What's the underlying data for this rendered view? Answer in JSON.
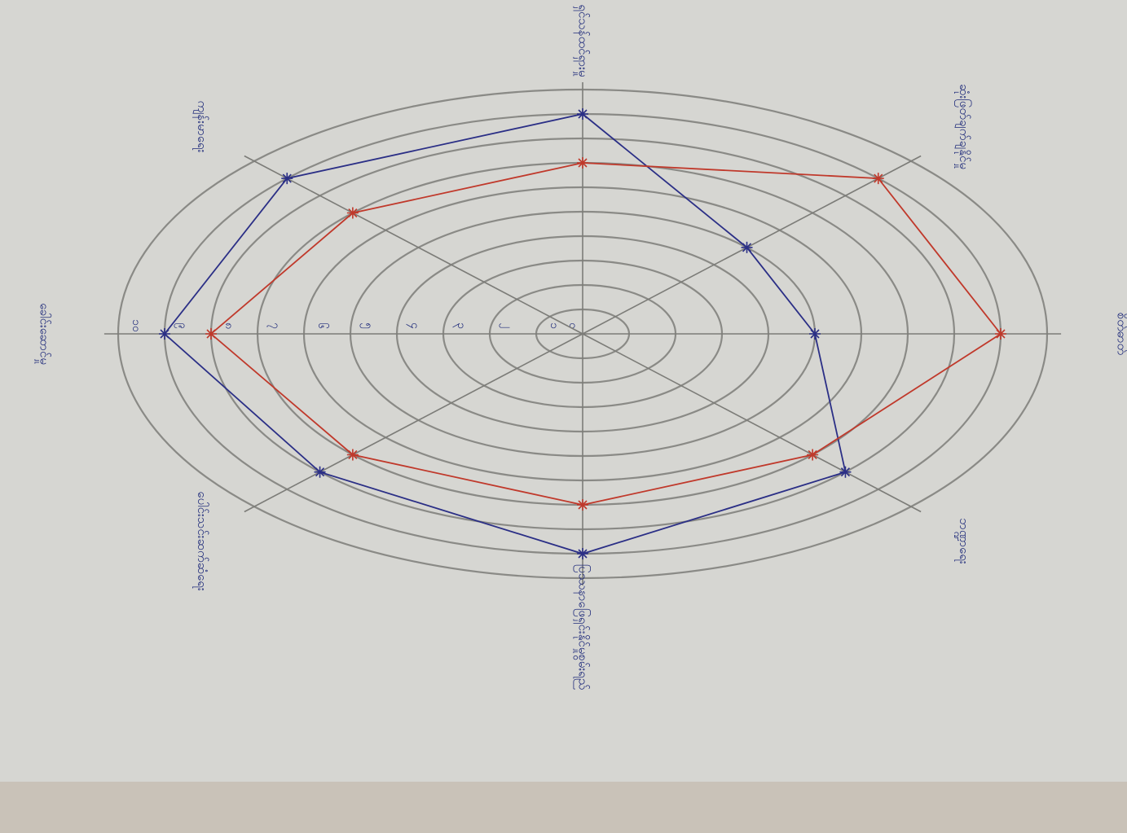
{
  "chart_data": {
    "type": "radar",
    "categories": [
      "ရှင်သန်ထင်ရှားမှု",
      "ဆုံးဖြတ်ချက်ချနိုင်မှု",
      "စိတ်ဓာတ်",
      "ဘဏ္ဍာရေး",
      "ပြဿနာဖြေရှင်းနိုင်မှုစွမ်းရည်",
      "ပေါင်းသင်းဆက်ဆံရေး",
      "ခေါင်းဆောင်မှု",
      "ကျန်းမာရေး"
    ],
    "rlim": [
      0,
      10
    ],
    "rticks": [
      {
        "value": 0,
        "label": "၀"
      },
      {
        "value": 1,
        "label": "၁"
      },
      {
        "value": 2,
        "label": "၂"
      },
      {
        "value": 3,
        "label": "၃"
      },
      {
        "value": 4,
        "label": "၄"
      },
      {
        "value": 5,
        "label": "၅"
      },
      {
        "value": 6,
        "label": "၆"
      },
      {
        "value": 7,
        "label": "၇"
      },
      {
        "value": 8,
        "label": "၈"
      },
      {
        "value": 9,
        "label": "၉"
      },
      {
        "value": 10,
        "label": "၁၀"
      }
    ],
    "series": [
      {
        "color": "#2b2f86",
        "values": [
          9,
          5,
          5,
          8,
          9,
          8,
          9,
          9
        ]
      },
      {
        "color": "#c0392b",
        "values": [
          7,
          9,
          9,
          7,
          7,
          7,
          8,
          7
        ]
      }
    ]
  }
}
